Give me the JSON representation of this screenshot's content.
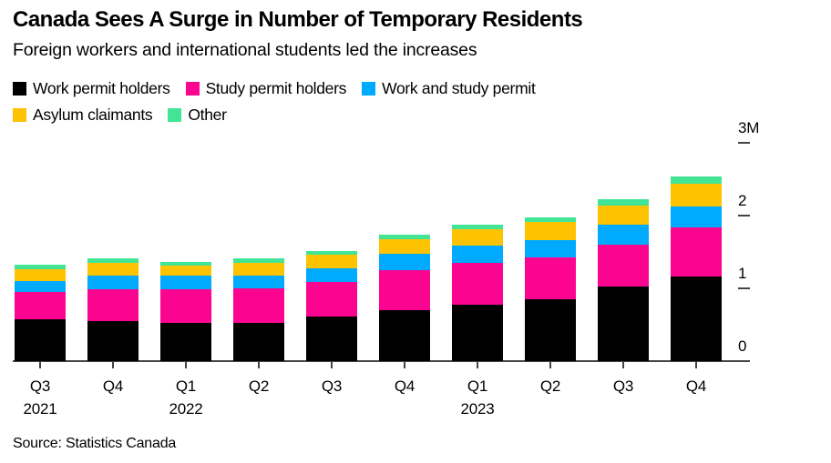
{
  "header": {
    "title": "Canada Sees A Surge in Number of Temporary Residents",
    "subtitle": "Foreign workers and international students led the increases"
  },
  "source_note": "Source: Statistics Canada",
  "colors": {
    "work_permit": "#000000",
    "study_permit": "#fb0590",
    "work_and_study": "#00aaff",
    "asylum": "#fdc200",
    "other": "#42e595",
    "axis": "#444444",
    "text": "#000000",
    "background": "#ffffff"
  },
  "chart_data": {
    "type": "bar",
    "stacked": true,
    "unit": "millions of people",
    "title": "Canada Sees A Surge in Number of Temporary Residents",
    "subtitle": "Foreign workers and international students led the increases",
    "categories": [
      "Q3",
      "Q4",
      "Q1",
      "Q2",
      "Q3",
      "Q4",
      "Q1",
      "Q2",
      "Q3",
      "Q4"
    ],
    "year_labels": [
      {
        "text": "2021",
        "index": 0
      },
      {
        "text": "2022",
        "index": 2
      },
      {
        "text": "2023",
        "index": 6
      }
    ],
    "series": [
      {
        "name": "Work permit holders",
        "color": "#000000",
        "values": [
          0.57,
          0.55,
          0.53,
          0.53,
          0.61,
          0.7,
          0.77,
          0.85,
          1.02,
          1.16
        ]
      },
      {
        "name": "Study permit holders",
        "color": "#fb0590",
        "values": [
          0.38,
          0.44,
          0.46,
          0.47,
          0.48,
          0.55,
          0.58,
          0.57,
          0.58,
          0.68
        ]
      },
      {
        "name": "Work and study permit",
        "color": "#00aaff",
        "values": [
          0.15,
          0.18,
          0.18,
          0.18,
          0.19,
          0.22,
          0.24,
          0.24,
          0.27,
          0.28
        ]
      },
      {
        "name": "Asylum claimants",
        "color": "#fdc200",
        "values": [
          0.16,
          0.18,
          0.14,
          0.17,
          0.18,
          0.2,
          0.22,
          0.25,
          0.27,
          0.32
        ]
      },
      {
        "name": "Other",
        "color": "#42e595",
        "values": [
          0.06,
          0.06,
          0.05,
          0.06,
          0.05,
          0.07,
          0.06,
          0.07,
          0.08,
          0.1
        ]
      }
    ],
    "ylim": [
      0,
      3
    ],
    "y_ticks": [
      {
        "value": 0,
        "label": "0"
      },
      {
        "value": 1,
        "label": "1"
      },
      {
        "value": 2,
        "label": "2"
      },
      {
        "value": 3,
        "label": "3M"
      }
    ],
    "grid": false,
    "legend_position": "top-left",
    "y_axis_side": "right"
  }
}
